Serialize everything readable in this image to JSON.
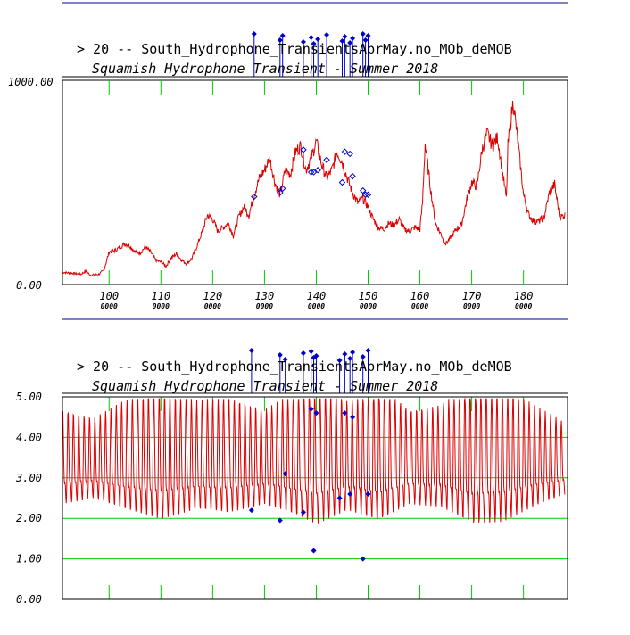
{
  "colors": {
    "series": "#dd0000",
    "events": "#0000cc",
    "grid": "#00cc00",
    "frame": "#000000",
    "separator": "#000088"
  },
  "chart_data": [
    {
      "type": "line",
      "title": "> 20 -- South_Hydrophone_TransientsAprMay.no_MOb_deMOB",
      "subtitle": "Squamish Hydrophone Transient - Summer 2018",
      "ylim": [
        0,
        1000
      ],
      "xlim": [
        91,
        188.5
      ],
      "y_tick_labels": [
        "1000.00",
        "0.00"
      ],
      "x_ticks": [
        100,
        110,
        120,
        130,
        140,
        150,
        160,
        170,
        180
      ],
      "x_tick_labels": [
        "100",
        "110",
        "120",
        "130",
        "140",
        "150",
        "160",
        "170",
        "180"
      ],
      "x_tick_sublabels": [
        "0000",
        "0000",
        "0000",
        "0000",
        "0000",
        "0000",
        "0000",
        "0000",
        "0000"
      ],
      "grid": "x-ticks only",
      "series": [
        {
          "x": [
            91,
            93,
            94.5,
            95.5,
            96.5,
            98,
            99,
            100,
            101,
            102,
            103,
            104,
            105,
            106,
            107,
            108,
            109,
            110,
            111,
            112,
            113,
            114,
            115,
            116,
            117,
            118,
            119,
            120,
            121,
            122,
            123,
            124,
            125,
            126,
            127,
            128,
            129,
            130,
            131,
            132,
            133,
            134,
            135,
            136,
            137,
            138,
            139,
            140,
            141,
            142,
            143,
            144,
            145,
            146,
            147,
            148,
            149,
            150,
            151,
            152,
            153,
            154,
            155,
            156,
            157,
            158,
            159,
            160,
            160.5,
            161,
            162,
            163,
            164,
            165,
            166,
            167,
            168,
            169,
            170,
            171,
            172,
            173,
            174,
            175,
            176,
            176.7,
            177,
            178,
            179,
            180,
            181,
            182,
            183,
            184,
            185,
            186,
            187,
            188
          ],
          "y": [
            60,
            55,
            50,
            65,
            45,
            50,
            70,
            160,
            165,
            180,
            200,
            190,
            160,
            155,
            185,
            160,
            120,
            110,
            90,
            130,
            150,
            120,
            100,
            130,
            190,
            260,
            340,
            320,
            260,
            280,
            300,
            240,
            330,
            380,
            340,
            440,
            520,
            560,
            620,
            500,
            440,
            560,
            540,
            650,
            680,
            560,
            620,
            700,
            590,
            520,
            560,
            650,
            600,
            520,
            450,
            400,
            420,
            380,
            320,
            280,
            270,
            300,
            290,
            320,
            270,
            260,
            280,
            270,
            400,
            690,
            480,
            300,
            250,
            200,
            230,
            270,
            290,
            410,
            500,
            480,
            660,
            740,
            680,
            720,
            540,
            420,
            680,
            900,
            680,
            440,
            340,
            310,
            310,
            330,
            450,
            490,
            330,
            340
          ]
        }
      ],
      "events": [
        {
          "x": 128,
          "y": 430
        },
        {
          "x": 133,
          "y": 450
        },
        {
          "x": 133.5,
          "y": 470
        },
        {
          "x": 137.5,
          "y": 660
        },
        {
          "x": 139,
          "y": 550
        },
        {
          "x": 139.5,
          "y": 550
        },
        {
          "x": 140.3,
          "y": 560
        },
        {
          "x": 142,
          "y": 610
        },
        {
          "x": 145,
          "y": 500
        },
        {
          "x": 145.5,
          "y": 650
        },
        {
          "x": 146.5,
          "y": 640
        },
        {
          "x": 147,
          "y": 530
        },
        {
          "x": 149,
          "y": 460
        },
        {
          "x": 149.5,
          "y": 440
        },
        {
          "x": 150,
          "y": 440
        }
      ]
    },
    {
      "type": "line",
      "title": "> 20 -- South_Hydrophone_TransientsAprMay.no_MOb_deMOB",
      "subtitle": "Squamish Hydrophone Transient - Summer 2018",
      "ylim": [
        0,
        5
      ],
      "xlim": [
        91,
        188.5
      ],
      "y_tick_labels": [
        "5.00",
        "4.00",
        "3.00",
        "2.00",
        "1.00",
        "0.00"
      ],
      "y_ticks": [
        5,
        4,
        3,
        2,
        1,
        0
      ],
      "x_ticks": [
        100,
        110,
        120,
        130,
        140,
        150,
        160,
        170,
        180
      ],
      "grid": "horizontal lines at 1, 2, 3, 4 and x tick marks",
      "series": [
        {
          "name": "",
          "tidal_mean": 3.3,
          "tidal_swing": [
            [
              91,
              1.3
            ],
            [
              97,
              1.1
            ],
            [
              103,
              1.5
            ],
            [
              110,
              1.8
            ],
            [
              117,
              1.5
            ],
            [
              123,
              1.6
            ],
            [
              130,
              1.3
            ],
            [
              136,
              1.7
            ],
            [
              140,
              2.0
            ],
            [
              146,
              1.5
            ],
            [
              152,
              1.9
            ],
            [
              158,
              1.3
            ],
            [
              164,
              1.4
            ],
            [
              170,
              2.0
            ],
            [
              176,
              1.9
            ],
            [
              182,
              1.4
            ],
            [
              188,
              1.0
            ]
          ]
        }
      ],
      "events": [
        {
          "x": 127.5,
          "y": 2.2
        },
        {
          "x": 133,
          "y": 1.95
        },
        {
          "x": 134,
          "y": 3.1
        },
        {
          "x": 137.5,
          "y": 2.15
        },
        {
          "x": 139.5,
          "y": 1.2
        },
        {
          "x": 139,
          "y": 4.7
        },
        {
          "x": 140,
          "y": 4.6
        },
        {
          "x": 144.5,
          "y": 2.5
        },
        {
          "x": 145.5,
          "y": 4.6
        },
        {
          "x": 146.5,
          "y": 2.6
        },
        {
          "x": 147,
          "y": 4.5
        },
        {
          "x": 149,
          "y": 1.0
        },
        {
          "x": 150,
          "y": 2.6
        }
      ]
    }
  ]
}
